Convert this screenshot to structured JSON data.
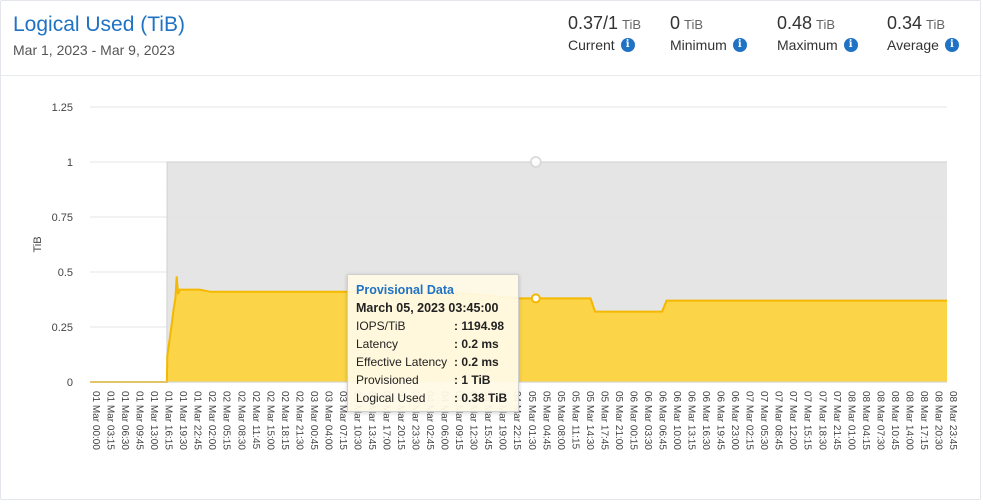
{
  "header": {
    "title": "Logical Used (TiB)",
    "date_range": "Mar 1, 2023 - Mar 9, 2023"
  },
  "stats": [
    {
      "value": "0.37/1",
      "unit": "TiB",
      "label": "Current"
    },
    {
      "value": "0",
      "unit": "TiB",
      "label": "Minimum"
    },
    {
      "value": "0.48",
      "unit": "TiB",
      "label": "Maximum"
    },
    {
      "value": "0.34",
      "unit": "TiB",
      "label": "Average"
    }
  ],
  "tooltip": {
    "heading": "Provisional Data",
    "timestamp": "March 05, 2023 03:45:00",
    "rows": [
      {
        "key": "IOPS/TiB",
        "value": ": 1194.98"
      },
      {
        "key": "Latency",
        "value": ": 0.2 ms"
      },
      {
        "key": "Effective Latency",
        "value": ": 0.2 ms"
      },
      {
        "key": "Provisioned",
        "value": ": 1 TiB"
      },
      {
        "key": "Logical Used",
        "value": ": 0.38 TiB"
      }
    ]
  },
  "colors": {
    "accent": "#1f72c4",
    "used_fill": "#fdd23b",
    "used_line": "#f5b800",
    "provisioned_fill": "#e4e4e4"
  },
  "chart_data": {
    "type": "area",
    "ylabel": "TiB",
    "ylim": [
      0,
      1.25
    ],
    "y_ticks": [
      "0",
      "0.25",
      "0.5",
      "0.75",
      "1",
      "1.25"
    ],
    "x_ticks": [
      "01 Mar 00:00",
      "01 Mar 03:15",
      "01 Mar 06:30",
      "01 Mar 09:45",
      "01 Mar 13:00",
      "01 Mar 16:15",
      "01 Mar 19:30",
      "01 Mar 22:45",
      "02 Mar 02:00",
      "02 Mar 05:15",
      "02 Mar 08:30",
      "02 Mar 11:45",
      "02 Mar 15:00",
      "02 Mar 18:15",
      "02 Mar 21:30",
      "03 Mar 00:45",
      "03 Mar 04:00",
      "03 Mar 07:15",
      "03 Mar 10:30",
      "03 Mar 13:45",
      "03 Mar 17:00",
      "03 Mar 20:15",
      "03 Mar 23:30",
      "04 Mar 02:45",
      "04 Mar 06:00",
      "04 Mar 09:15",
      "04 Mar 12:30",
      "04 Mar 15:45",
      "04 Mar 19:00",
      "04 Mar 22:15",
      "05 Mar 01:30",
      "05 Mar 04:45",
      "05 Mar 08:00",
      "05 Mar 11:15",
      "05 Mar 14:30",
      "05 Mar 17:45",
      "05 Mar 21:00",
      "06 Mar 00:15",
      "06 Mar 03:30",
      "06 Mar 06:45",
      "06 Mar 10:00",
      "06 Mar 13:15",
      "06 Mar 16:30",
      "06 Mar 19:45",
      "06 Mar 23:00",
      "07 Mar 02:15",
      "07 Mar 05:30",
      "07 Mar 08:45",
      "07 Mar 12:00",
      "07 Mar 15:15",
      "07 Mar 18:30",
      "07 Mar 21:45",
      "08 Mar 01:00",
      "08 Mar 04:15",
      "08 Mar 07:30",
      "08 Mar 10:45",
      "08 Mar 14:00",
      "08 Mar 17:15",
      "08 Mar 20:30",
      "08 Mar 23:45"
    ],
    "x_range_hours": [
      0,
      191.75
    ],
    "series": [
      {
        "name": "Provisioned",
        "points": [
          [
            0,
            0
          ],
          [
            17.2,
            0
          ],
          [
            17.25,
            1
          ],
          [
            191.75,
            1
          ]
        ]
      },
      {
        "name": "Logical Used",
        "points": [
          [
            0,
            0
          ],
          [
            17.2,
            0
          ],
          [
            17.3,
            0.12
          ],
          [
            18.2,
            0.25
          ],
          [
            18.7,
            0.33
          ],
          [
            19.1,
            0.38
          ],
          [
            19.4,
            0.48
          ],
          [
            19.7,
            0.4
          ],
          [
            20.1,
            0.42
          ],
          [
            24.5,
            0.42
          ],
          [
            27,
            0.41
          ],
          [
            80,
            0.41
          ],
          [
            96,
            0.38
          ],
          [
            112,
            0.38
          ],
          [
            113,
            0.32
          ],
          [
            128,
            0.32
          ],
          [
            129,
            0.37
          ],
          [
            191.75,
            0.37
          ]
        ]
      }
    ],
    "hover_point": {
      "x": 99.75,
      "y": 0.38
    }
  }
}
